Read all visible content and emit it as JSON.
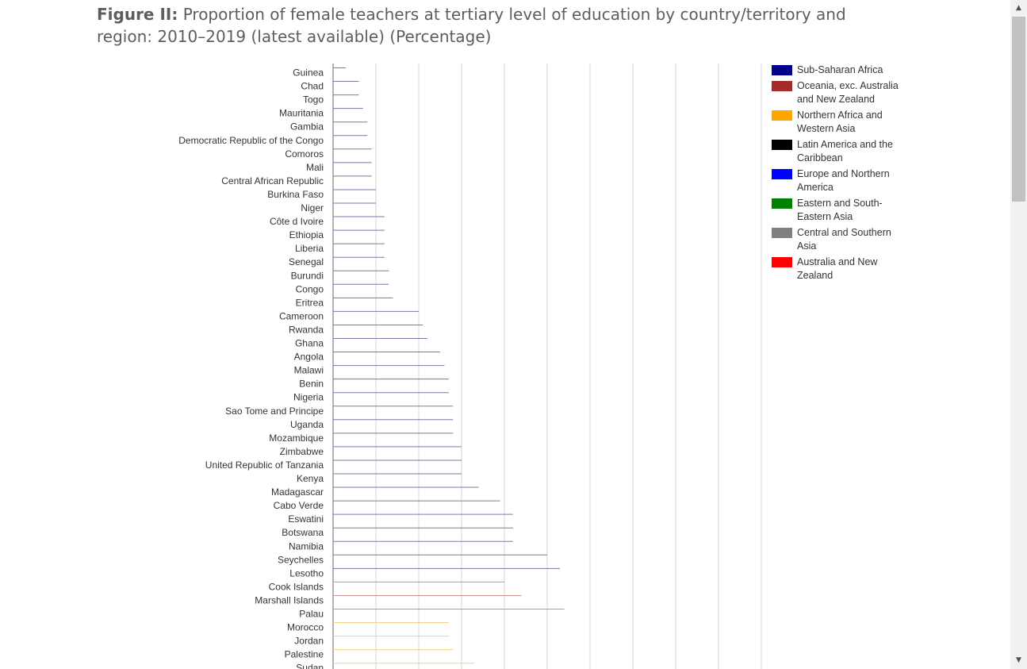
{
  "figure": {
    "label": "Figure II:",
    "title": "Proportion of female teachers at tertiary level of education by country/territory and region: 2010–2019 (latest available) (Percentage)"
  },
  "chart_data": {
    "type": "bar",
    "orientation": "horizontal",
    "title": "Figure II: Proportion of female teachers at tertiary level of education by country/territory and region: 2010–2019 (latest available) (Percentage)",
    "xlabel": "",
    "ylabel": "",
    "xlim": [
      0,
      100
    ],
    "grid": true,
    "legend_position": "right",
    "categories": [
      "Guinea",
      "Chad",
      "Togo",
      "Mauritania",
      "Gambia",
      "Democratic Republic of the Congo",
      "Comoros",
      "Mali",
      "Central African Republic",
      "Burkina Faso",
      "Niger",
      "Côte d Ivoire",
      "Ethiopia",
      "Liberia",
      "Senegal",
      "Burundi",
      "Congo",
      "Eritrea",
      "Cameroon",
      "Rwanda",
      "Ghana",
      "Angola",
      "Malawi",
      "Benin",
      "Nigeria",
      "Sao Tome and Principe",
      "Uganda",
      "Mozambique",
      "Zimbabwe",
      "United Republic of Tanzania",
      "Kenya",
      "Madagascar",
      "Cabo Verde",
      "Eswatini",
      "Botswana",
      "Namibia",
      "Seychelles",
      "Lesotho",
      "Cook Islands",
      "Marshall Islands",
      "Palau",
      "Morocco",
      "Jordan",
      "Palestine",
      "Sudan"
    ],
    "values": [
      3,
      6,
      6,
      7,
      8,
      8,
      9,
      9,
      9,
      10,
      10,
      12,
      12,
      12,
      12,
      13,
      13,
      14,
      20,
      21,
      22,
      25,
      26,
      27,
      27,
      28,
      28,
      28,
      30,
      30,
      30,
      34,
      39,
      42,
      42,
      42,
      50,
      53,
      40,
      44,
      54,
      27,
      27,
      28,
      33
    ],
    "region_of_category": [
      "Sub-Saharan Africa",
      "Sub-Saharan Africa",
      "Sub-Saharan Africa",
      "Sub-Saharan Africa",
      "Sub-Saharan Africa",
      "Sub-Saharan Africa",
      "Sub-Saharan Africa",
      "Sub-Saharan Africa",
      "Sub-Saharan Africa",
      "Sub-Saharan Africa",
      "Sub-Saharan Africa",
      "Sub-Saharan Africa",
      "Sub-Saharan Africa",
      "Sub-Saharan Africa",
      "Sub-Saharan Africa",
      "Sub-Saharan Africa",
      "Sub-Saharan Africa",
      "Sub-Saharan Africa",
      "Sub-Saharan Africa",
      "Sub-Saharan Africa",
      "Sub-Saharan Africa",
      "Sub-Saharan Africa",
      "Sub-Saharan Africa",
      "Sub-Saharan Africa",
      "Sub-Saharan Africa",
      "Sub-Saharan Africa",
      "Sub-Saharan Africa",
      "Sub-Saharan Africa",
      "Sub-Saharan Africa",
      "Sub-Saharan Africa",
      "Sub-Saharan Africa",
      "Sub-Saharan Africa",
      "Sub-Saharan Africa",
      "Sub-Saharan Africa",
      "Sub-Saharan Africa",
      "Sub-Saharan Africa",
      "Sub-Saharan Africa",
      "Sub-Saharan Africa",
      "Oceania, exc. Australia and New Zealand",
      "Oceania, exc. Australia and New Zealand",
      "Oceania, exc. Australia and New Zealand",
      "Northern Africa and Western Asia",
      "Northern Africa and Western Asia",
      "Northern Africa and Western Asia",
      "Northern Africa and Western Asia"
    ],
    "legend": [
      {
        "name": "Sub-Saharan Africa",
        "swatch": "#00008b",
        "bar_color": "#7a7aa6"
      },
      {
        "name": "Oceania, exc. Australia and New Zealand",
        "swatch": "#a52a2a",
        "bar_color": "#c99393"
      },
      {
        "name": "Northern Africa and Western Asia",
        "swatch": "#ffa500",
        "bar_color": "#f5cf8a"
      },
      {
        "name": "Latin America and the Caribbean",
        "swatch": "#000000",
        "bar_color": "#808080"
      },
      {
        "name": "Europe and Northern America",
        "swatch": "#0000ff",
        "bar_color": "#8080ff"
      },
      {
        "name": "Eastern and South-Eastern Asia",
        "swatch": "#008000",
        "bar_color": "#80c080"
      },
      {
        "name": "Central and Southern Asia",
        "swatch": "#808080",
        "bar_color": "#b0b0b0"
      },
      {
        "name": "Australia and New Zealand",
        "swatch": "#ff0000",
        "bar_color": "#ff8080"
      }
    ]
  },
  "scrollbar": {
    "up_icon": "scroll-up-arrow-icon",
    "down_icon": "scroll-down-arrow-icon"
  }
}
